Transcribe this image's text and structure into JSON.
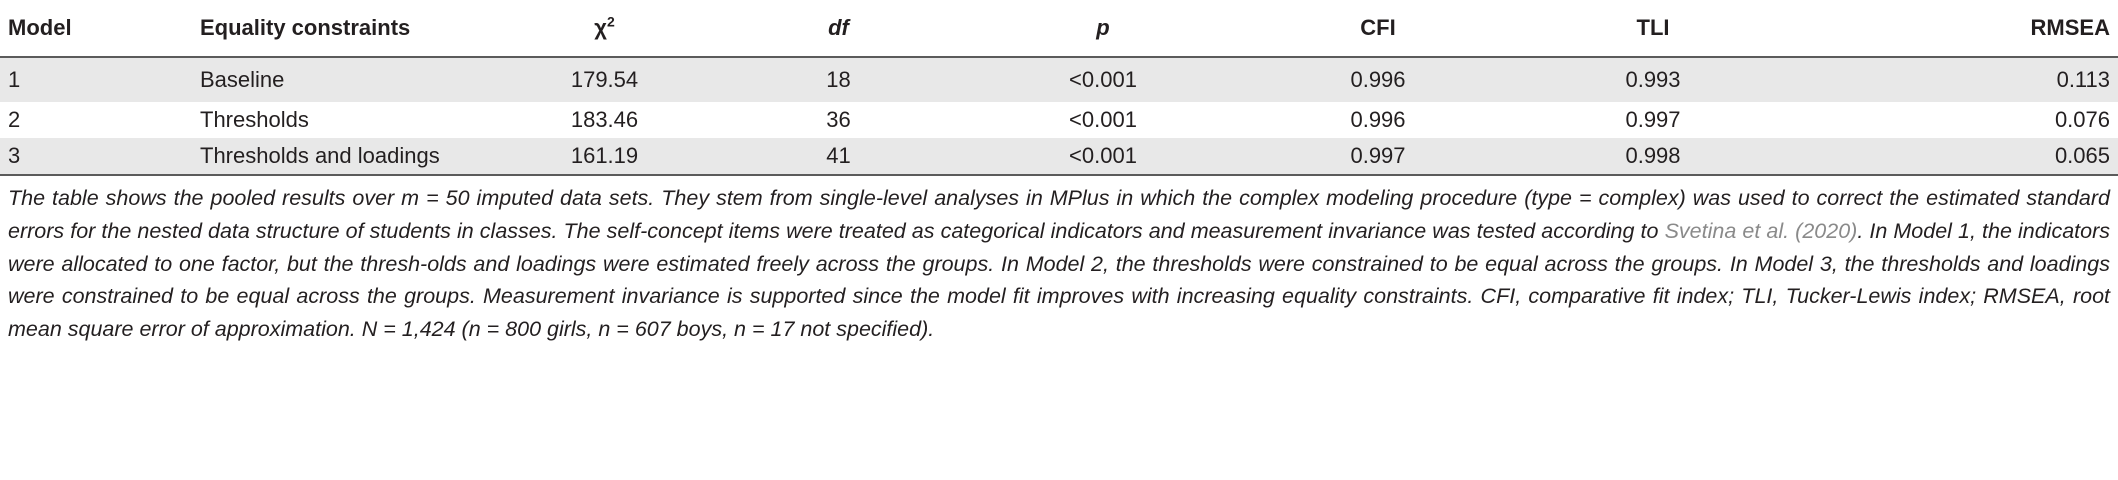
{
  "table": {
    "headers": {
      "model": "Model",
      "constraints": "Equality constraints",
      "chi_base": "χ",
      "chi_sup": "2",
      "df": "df",
      "p": "p",
      "cfi": "CFI",
      "tli": "TLI",
      "rmsea": "RMSEA"
    },
    "rows": [
      {
        "model": "1",
        "constraints": "Baseline",
        "chi2": "179.54",
        "df": "18",
        "p": "<0.001",
        "cfi": "0.996",
        "tli": "0.993",
        "rmsea": "0.113"
      },
      {
        "model": "2",
        "constraints": "Thresholds",
        "chi2": "183.46",
        "df": "36",
        "p": "<0.001",
        "cfi": "0.996",
        "tli": "0.997",
        "rmsea": "0.076"
      },
      {
        "model": "3",
        "constraints": "Thresholds and loadings",
        "chi2": "161.19",
        "df": "41",
        "p": "<0.001",
        "cfi": "0.997",
        "tli": "0.998",
        "rmsea": "0.065"
      }
    ]
  },
  "note": {
    "part1": "The table shows the pooled results over m = 50 imputed data sets. They stem from single-level analyses in MPlus in which the complex modeling procedure (type = complex) was used to correct the estimated standard errors for the nested data structure of students in classes. The self-concept items were treated as categorical indicators and measurement invariance was tested according to ",
    "link": "Svetina et al. (2020)",
    "part2": ". In Model 1, the indicators were allocated to one factor, but the thresh-olds and loadings were estimated freely across the groups. In Model 2, the thresholds were constrained to be equal across the groups. In Model 3, the thresholds and loadings were constrained to be equal across the groups. Measurement invariance is supported since the model fit improves with increasing equality constraints. CFI, comparative fit index; TLI, Tucker-Lewis index; RMSEA, root mean square error of approximation. N = 1,424 (n = 800 girls, n = 607 boys, n = 17 not specified)."
  }
}
